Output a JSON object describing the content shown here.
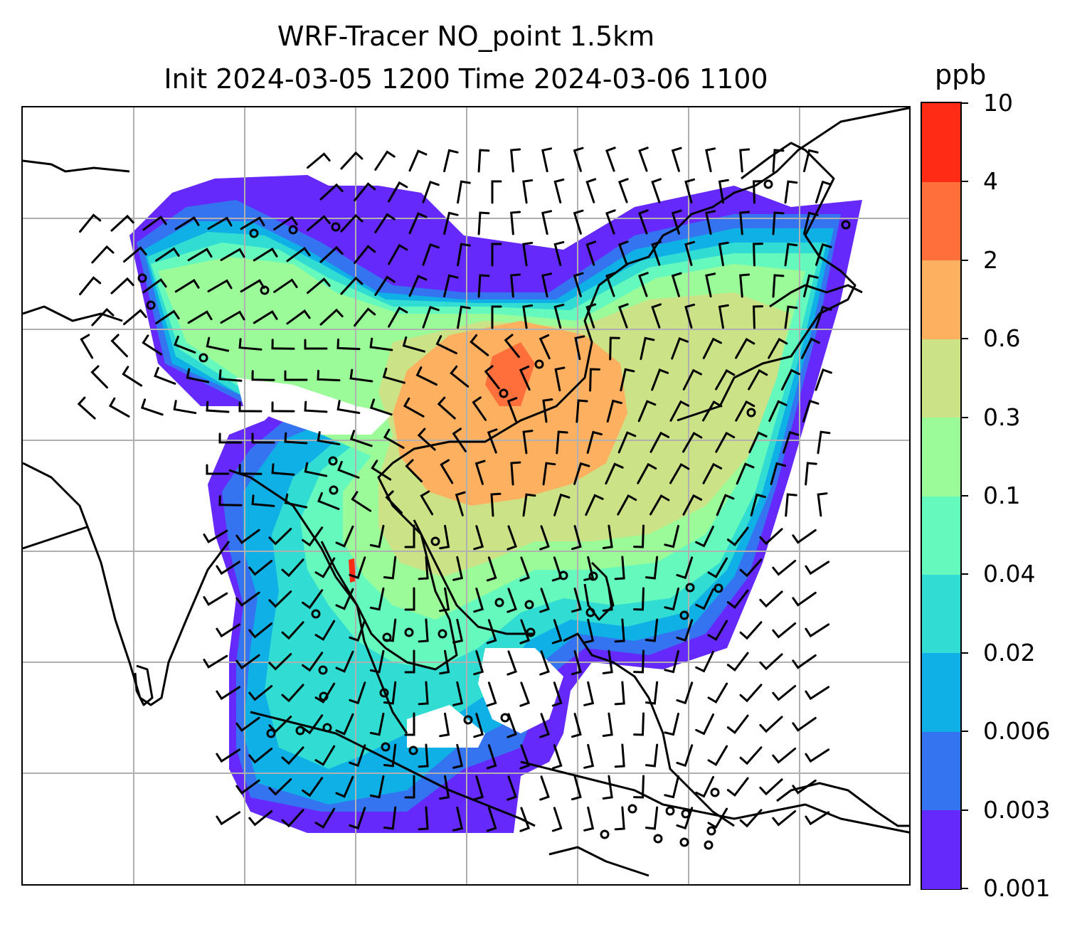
{
  "title": {
    "line1": "WRF-Tracer NO_point 1.5km",
    "line2": "Init 2024-03-05 1200 Time 2024-03-06 1100"
  },
  "colorbar": {
    "unit": "ppb",
    "levels": [
      "0.001",
      "0.003",
      "0.006",
      "0.02",
      "0.04",
      "0.1",
      "0.3",
      "0.6",
      "2",
      "4",
      "10"
    ],
    "colors": [
      "#6529fb",
      "#3574f0",
      "#0eb0e6",
      "#31ddd3",
      "#66f9bd",
      "#9bfb99",
      "#cbe286",
      "#fdb160",
      "#fe6f3c",
      "#ff2b14"
    ]
  },
  "map": {
    "background": "#ffffff",
    "gridline_color": "#b0b0b0",
    "coastline_color": "#000000",
    "wind_barb_color": "#000000",
    "layers": [
      "tracer-concentration-fill",
      "gridlines",
      "coastlines",
      "wind-barbs",
      "calm-wind-circles"
    ]
  }
}
